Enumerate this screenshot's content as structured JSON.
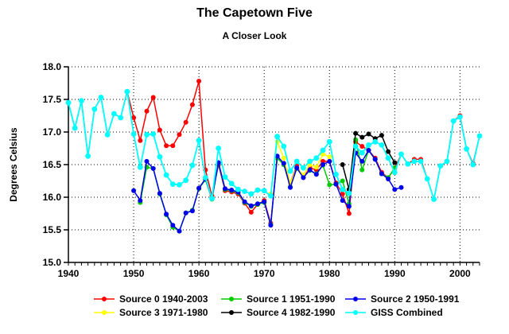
{
  "header": {
    "title": "The Capetown Five",
    "subtitle": "A Closer Look"
  },
  "chart_data": {
    "type": "line",
    "title": "The Capetown Five",
    "subtitle": "A Closer Look",
    "xlabel": "",
    "ylabel": "Degrees Celsius",
    "ylim": [
      15.0,
      18.0
    ],
    "xlim": [
      1940,
      2003
    ],
    "y_ticks": [
      "15.0",
      "15.5",
      "16.0",
      "16.5",
      "17.0",
      "17.5",
      "18.0"
    ],
    "x_tick_labels": [
      "1940",
      "1950",
      "1960",
      "1970",
      "1980",
      "1990",
      "2000"
    ],
    "x_minor_tick_start": 1940,
    "x_minor_tick_end": 2003,
    "grid": "dotted",
    "legend_position": "bottom",
    "axis_color": "#000000",
    "background_color": "#ffffff",
    "series": [
      {
        "name": "Source 0 1940-2003",
        "color": "#ff0000",
        "points": [
          [
            1940,
            17.45
          ],
          [
            1941,
            17.06
          ],
          [
            1942,
            17.48
          ],
          [
            1943,
            16.63
          ],
          [
            1944,
            17.35
          ],
          [
            1945,
            17.53
          ],
          [
            1946,
            16.96
          ],
          [
            1947,
            17.28
          ],
          [
            1948,
            17.22
          ],
          [
            1949,
            17.62
          ],
          [
            1950,
            17.22
          ],
          [
            1951,
            16.87
          ],
          [
            1952,
            17.32
          ],
          [
            1953,
            17.53
          ],
          [
            1954,
            17.03
          ],
          [
            1955,
            16.79
          ],
          [
            1956,
            16.79
          ],
          [
            1957,
            16.96
          ],
          [
            1958,
            17.15
          ],
          [
            1959,
            17.42
          ],
          [
            1960,
            17.78
          ],
          [
            1961,
            16.42
          ],
          [
            1962,
            16.02
          ],
          [
            1963,
            16.5
          ],
          [
            1964,
            16.1
          ],
          [
            1965,
            16.08
          ],
          [
            1966,
            16.05
          ],
          [
            1967,
            15.91
          ],
          [
            1968,
            15.77
          ],
          [
            1969,
            15.89
          ],
          [
            1970,
            15.95
          ],
          [
            1971,
            15.6
          ],
          [
            1972,
            16.62
          ],
          [
            1973,
            16.5
          ],
          [
            1974,
            16.22
          ],
          [
            1975,
            16.48
          ],
          [
            1976,
            16.3
          ],
          [
            1977,
            16.45
          ],
          [
            1978,
            16.42
          ],
          [
            1979,
            16.55
          ],
          [
            1980,
            16.55
          ],
          [
            1981,
            16.22
          ],
          [
            1982,
            16.05
          ],
          [
            1983,
            15.75
          ],
          [
            1984,
            16.85
          ],
          [
            1985,
            16.78
          ],
          [
            1986,
            16.72
          ],
          [
            1987,
            16.6
          ],
          [
            1988,
            16.38
          ],
          [
            1989,
            16.3
          ],
          [
            1990,
            16.44
          ],
          [
            1991,
            16.66
          ],
          [
            1992,
            16.51
          ],
          [
            1993,
            16.58
          ],
          [
            1994,
            16.58
          ],
          [
            1995,
            16.28
          ],
          [
            1996,
            15.97
          ],
          [
            1997,
            16.48
          ],
          [
            1998,
            16.55
          ],
          [
            1999,
            17.17
          ],
          [
            2000,
            17.25
          ],
          [
            2001,
            16.74
          ],
          [
            2002,
            16.52
          ],
          [
            2003,
            16.94
          ]
        ]
      },
      {
        "name": "Source 1 1951-1990",
        "color": "#00cc00",
        "points": [
          [
            1951,
            15.92
          ],
          [
            1952,
            16.46
          ],
          [
            1953,
            16.44
          ],
          [
            1954,
            16.05
          ],
          [
            1955,
            15.73
          ],
          [
            1956,
            15.54
          ],
          [
            1957,
            15.48
          ],
          [
            1958,
            15.76
          ],
          [
            1959,
            15.8
          ],
          [
            1960,
            16.13
          ],
          [
            1961,
            16.27
          ],
          [
            1962,
            15.97
          ],
          [
            1963,
            16.52
          ],
          [
            1964,
            16.12
          ],
          [
            1965,
            16.1
          ],
          [
            1966,
            16.07
          ],
          [
            1967,
            15.92
          ],
          [
            1968,
            15.86
          ],
          [
            1969,
            15.89
          ],
          [
            1970,
            15.92
          ],
          [
            1971,
            15.58
          ],
          [
            1972,
            16.6
          ],
          [
            1973,
            16.5
          ],
          [
            1974,
            16.16
          ],
          [
            1975,
            16.44
          ],
          [
            1976,
            16.31
          ],
          [
            1977,
            16.41
          ],
          [
            1978,
            16.36
          ],
          [
            1979,
            16.49
          ],
          [
            1980,
            16.19
          ],
          [
            1981,
            16.2
          ],
          [
            1982,
            16.25
          ],
          [
            1983,
            15.9
          ],
          [
            1984,
            16.88
          ],
          [
            1985,
            16.42
          ],
          [
            1986,
            16.72
          ],
          [
            1987,
            16.58
          ],
          [
            1988,
            16.36
          ],
          [
            1989,
            16.3
          ],
          [
            1990,
            16.45
          ]
        ]
      },
      {
        "name": "Source 2 1950-1991",
        "color": "#0000ee",
        "points": [
          [
            1950,
            16.1
          ],
          [
            1951,
            15.95
          ],
          [
            1952,
            16.55
          ],
          [
            1953,
            16.44
          ],
          [
            1954,
            16.06
          ],
          [
            1955,
            15.74
          ],
          [
            1956,
            15.57
          ],
          [
            1957,
            15.48
          ],
          [
            1958,
            15.76
          ],
          [
            1959,
            15.79
          ],
          [
            1960,
            16.14
          ],
          [
            1961,
            16.28
          ],
          [
            1962,
            15.98
          ],
          [
            1963,
            16.53
          ],
          [
            1964,
            16.13
          ],
          [
            1965,
            16.11
          ],
          [
            1966,
            16.08
          ],
          [
            1967,
            15.93
          ],
          [
            1968,
            15.87
          ],
          [
            1969,
            15.9
          ],
          [
            1970,
            15.93
          ],
          [
            1971,
            15.57
          ],
          [
            1972,
            16.63
          ],
          [
            1973,
            16.52
          ],
          [
            1974,
            16.15
          ],
          [
            1975,
            16.45
          ],
          [
            1976,
            16.3
          ],
          [
            1977,
            16.42
          ],
          [
            1978,
            16.35
          ],
          [
            1979,
            16.5
          ],
          [
            1980,
            16.55
          ],
          [
            1981,
            16.2
          ],
          [
            1982,
            15.95
          ],
          [
            1983,
            15.86
          ],
          [
            1984,
            16.68
          ],
          [
            1985,
            16.55
          ],
          [
            1986,
            16.72
          ],
          [
            1987,
            16.58
          ],
          [
            1988,
            16.36
          ],
          [
            1989,
            16.28
          ],
          [
            1990,
            16.12
          ],
          [
            1991,
            16.15
          ]
        ]
      },
      {
        "name": "Source 3 1971-1980",
        "color": "#ffff00",
        "points": [
          [
            1971,
            16.05
          ],
          [
            1972,
            16.85
          ],
          [
            1973,
            16.6
          ],
          [
            1974,
            16.22
          ],
          [
            1975,
            16.45
          ],
          [
            1976,
            16.34
          ],
          [
            1977,
            16.5
          ],
          [
            1978,
            16.46
          ],
          [
            1979,
            16.66
          ],
          [
            1980,
            16.62
          ]
        ]
      },
      {
        "name": "Source 4 1982-1990",
        "color": "#000000",
        "points": [
          [
            1982,
            16.5
          ],
          [
            1983,
            16.12
          ],
          [
            1984,
            16.98
          ],
          [
            1985,
            16.92
          ],
          [
            1986,
            16.97
          ],
          [
            1987,
            16.9
          ],
          [
            1988,
            16.95
          ],
          [
            1989,
            16.7
          ],
          [
            1990,
            16.53
          ]
        ]
      },
      {
        "name": "GISS Combined",
        "color": "#00ffff",
        "points": [
          [
            1940,
            17.45
          ],
          [
            1941,
            17.06
          ],
          [
            1942,
            17.48
          ],
          [
            1943,
            16.63
          ],
          [
            1944,
            17.35
          ],
          [
            1945,
            17.53
          ],
          [
            1946,
            16.96
          ],
          [
            1947,
            17.28
          ],
          [
            1948,
            17.22
          ],
          [
            1949,
            17.62
          ],
          [
            1950,
            16.97
          ],
          [
            1951,
            16.46
          ],
          [
            1952,
            16.96
          ],
          [
            1953,
            16.97
          ],
          [
            1954,
            16.62
          ],
          [
            1955,
            16.34
          ],
          [
            1956,
            16.2
          ],
          [
            1957,
            16.19
          ],
          [
            1958,
            16.26
          ],
          [
            1959,
            16.49
          ],
          [
            1960,
            16.87
          ],
          [
            1961,
            16.3
          ],
          [
            1962,
            15.98
          ],
          [
            1963,
            16.75
          ],
          [
            1964,
            16.31
          ],
          [
            1965,
            16.21
          ],
          [
            1966,
            16.12
          ],
          [
            1967,
            16.09
          ],
          [
            1968,
            16.05
          ],
          [
            1969,
            16.11
          ],
          [
            1970,
            16.1
          ],
          [
            1971,
            16.02
          ],
          [
            1972,
            16.93
          ],
          [
            1973,
            16.78
          ],
          [
            1974,
            16.4
          ],
          [
            1975,
            16.55
          ],
          [
            1976,
            16.45
          ],
          [
            1977,
            16.55
          ],
          [
            1978,
            16.6
          ],
          [
            1979,
            16.72
          ],
          [
            1980,
            16.85
          ],
          [
            1981,
            16.35
          ],
          [
            1982,
            16.12
          ],
          [
            1983,
            16.06
          ],
          [
            1984,
            16.78
          ],
          [
            1985,
            16.68
          ],
          [
            1986,
            16.8
          ],
          [
            1987,
            16.85
          ],
          [
            1988,
            16.8
          ],
          [
            1989,
            16.6
          ],
          [
            1990,
            16.38
          ],
          [
            1991,
            16.66
          ],
          [
            1992,
            16.51
          ],
          [
            1993,
            16.55
          ],
          [
            1994,
            16.55
          ],
          [
            1995,
            16.28
          ],
          [
            1996,
            15.97
          ],
          [
            1997,
            16.48
          ],
          [
            1998,
            16.55
          ],
          [
            1999,
            17.17
          ],
          [
            2000,
            17.23
          ],
          [
            2001,
            16.74
          ],
          [
            2002,
            16.5
          ],
          [
            2003,
            16.94
          ]
        ]
      }
    ],
    "draw_order": [
      0,
      1,
      3,
      2,
      4,
      5
    ]
  }
}
